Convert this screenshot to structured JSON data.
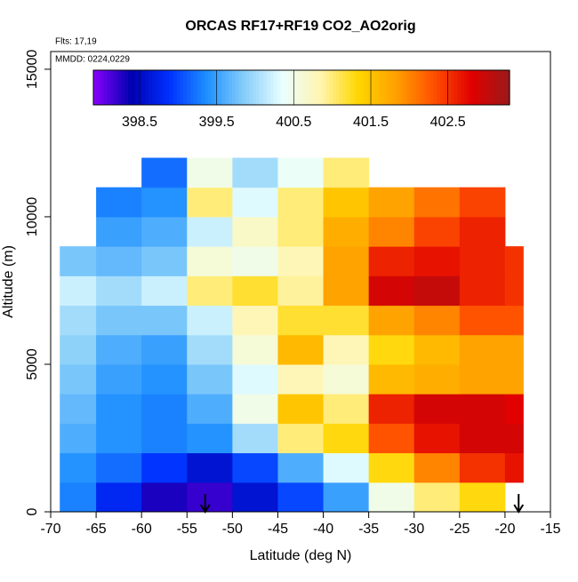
{
  "chart_data": {
    "type": "heatmap",
    "title": "ORCAS RF17+RF19 CO2_AO2orig",
    "subtitles": [
      "Flts: 17,19",
      "MMDD: 0224,0229"
    ],
    "x_label": "Latitude (deg N)",
    "y_label": "Altitude (m)",
    "xlim": [
      -70,
      -15
    ],
    "xticks": [
      -70,
      -65,
      -60,
      -55,
      -50,
      -45,
      -40,
      -35,
      -30,
      -25,
      -20,
      -15
    ],
    "ylim": [
      0,
      15600
    ],
    "yticks": [
      0,
      5000,
      10000,
      15000
    ],
    "x_edges": [
      -69,
      -65,
      -60,
      -55,
      -50,
      -45,
      -40,
      -35,
      -30,
      -25,
      -20,
      -18
    ],
    "y_edges": [
      0,
      1000,
      2000,
      3000,
      4000,
      5000,
      6000,
      7000,
      8000,
      9000,
      10000,
      11000,
      12000
    ],
    "values": [
      [
        399.3,
        398.8,
        398.3,
        398.2,
        398.6,
        399.0,
        399.5,
        400.5,
        401.0,
        401.3,
        null
      ],
      [
        399.4,
        399.2,
        398.9,
        398.6,
        399.0,
        399.6,
        400.3,
        401.3,
        402.0,
        402.5,
        402.7
      ],
      [
        399.6,
        399.4,
        399.3,
        399.4,
        400.0,
        401.0,
        401.3,
        402.3,
        402.7,
        402.9,
        402.9
      ],
      [
        399.7,
        399.4,
        399.3,
        399.6,
        400.5,
        401.5,
        401.0,
        402.6,
        402.9,
        402.9,
        402.8
      ],
      [
        399.8,
        399.5,
        399.4,
        399.8,
        400.3,
        400.8,
        400.6,
        401.6,
        401.7,
        401.8,
        401.8
      ],
      [
        399.9,
        399.6,
        399.5,
        400.0,
        400.6,
        401.6,
        400.8,
        401.3,
        401.6,
        401.8,
        401.8
      ],
      [
        400.0,
        399.8,
        399.8,
        400.2,
        400.8,
        401.2,
        401.2,
        401.8,
        402.0,
        402.3,
        402.3
      ],
      [
        400.2,
        400.0,
        400.2,
        401.0,
        401.2,
        400.9,
        401.8,
        402.9,
        403.0,
        402.6,
        402.5
      ],
      [
        399.8,
        399.7,
        399.8,
        400.6,
        400.5,
        400.8,
        401.8,
        402.6,
        402.7,
        402.6,
        402.5
      ],
      [
        null,
        399.5,
        399.6,
        400.2,
        400.7,
        401.0,
        401.7,
        402.0,
        402.4,
        402.6,
        null
      ],
      [
        null,
        399.3,
        399.4,
        401.0,
        400.3,
        401.0,
        401.5,
        401.8,
        402.1,
        402.4,
        null
      ],
      [
        null,
        null,
        399.2,
        400.5,
        400.0,
        400.4,
        401.0,
        null,
        null,
        null,
        null
      ]
    ],
    "clim": [
      397.9,
      403.3
    ],
    "cticks": [
      398.5,
      399.5,
      400.5,
      401.5,
      402.5
    ],
    "palette": [
      "#8a00ff",
      "#0000b0",
      "#0030ff",
      "#1e90ff",
      "#87cefa",
      "#eaffff",
      "#fff5b0",
      "#ffd700",
      "#ffa000",
      "#ff5000",
      "#e00000",
      "#9a1a1a"
    ],
    "arrows_x": [
      -53,
      -18.5
    ]
  }
}
